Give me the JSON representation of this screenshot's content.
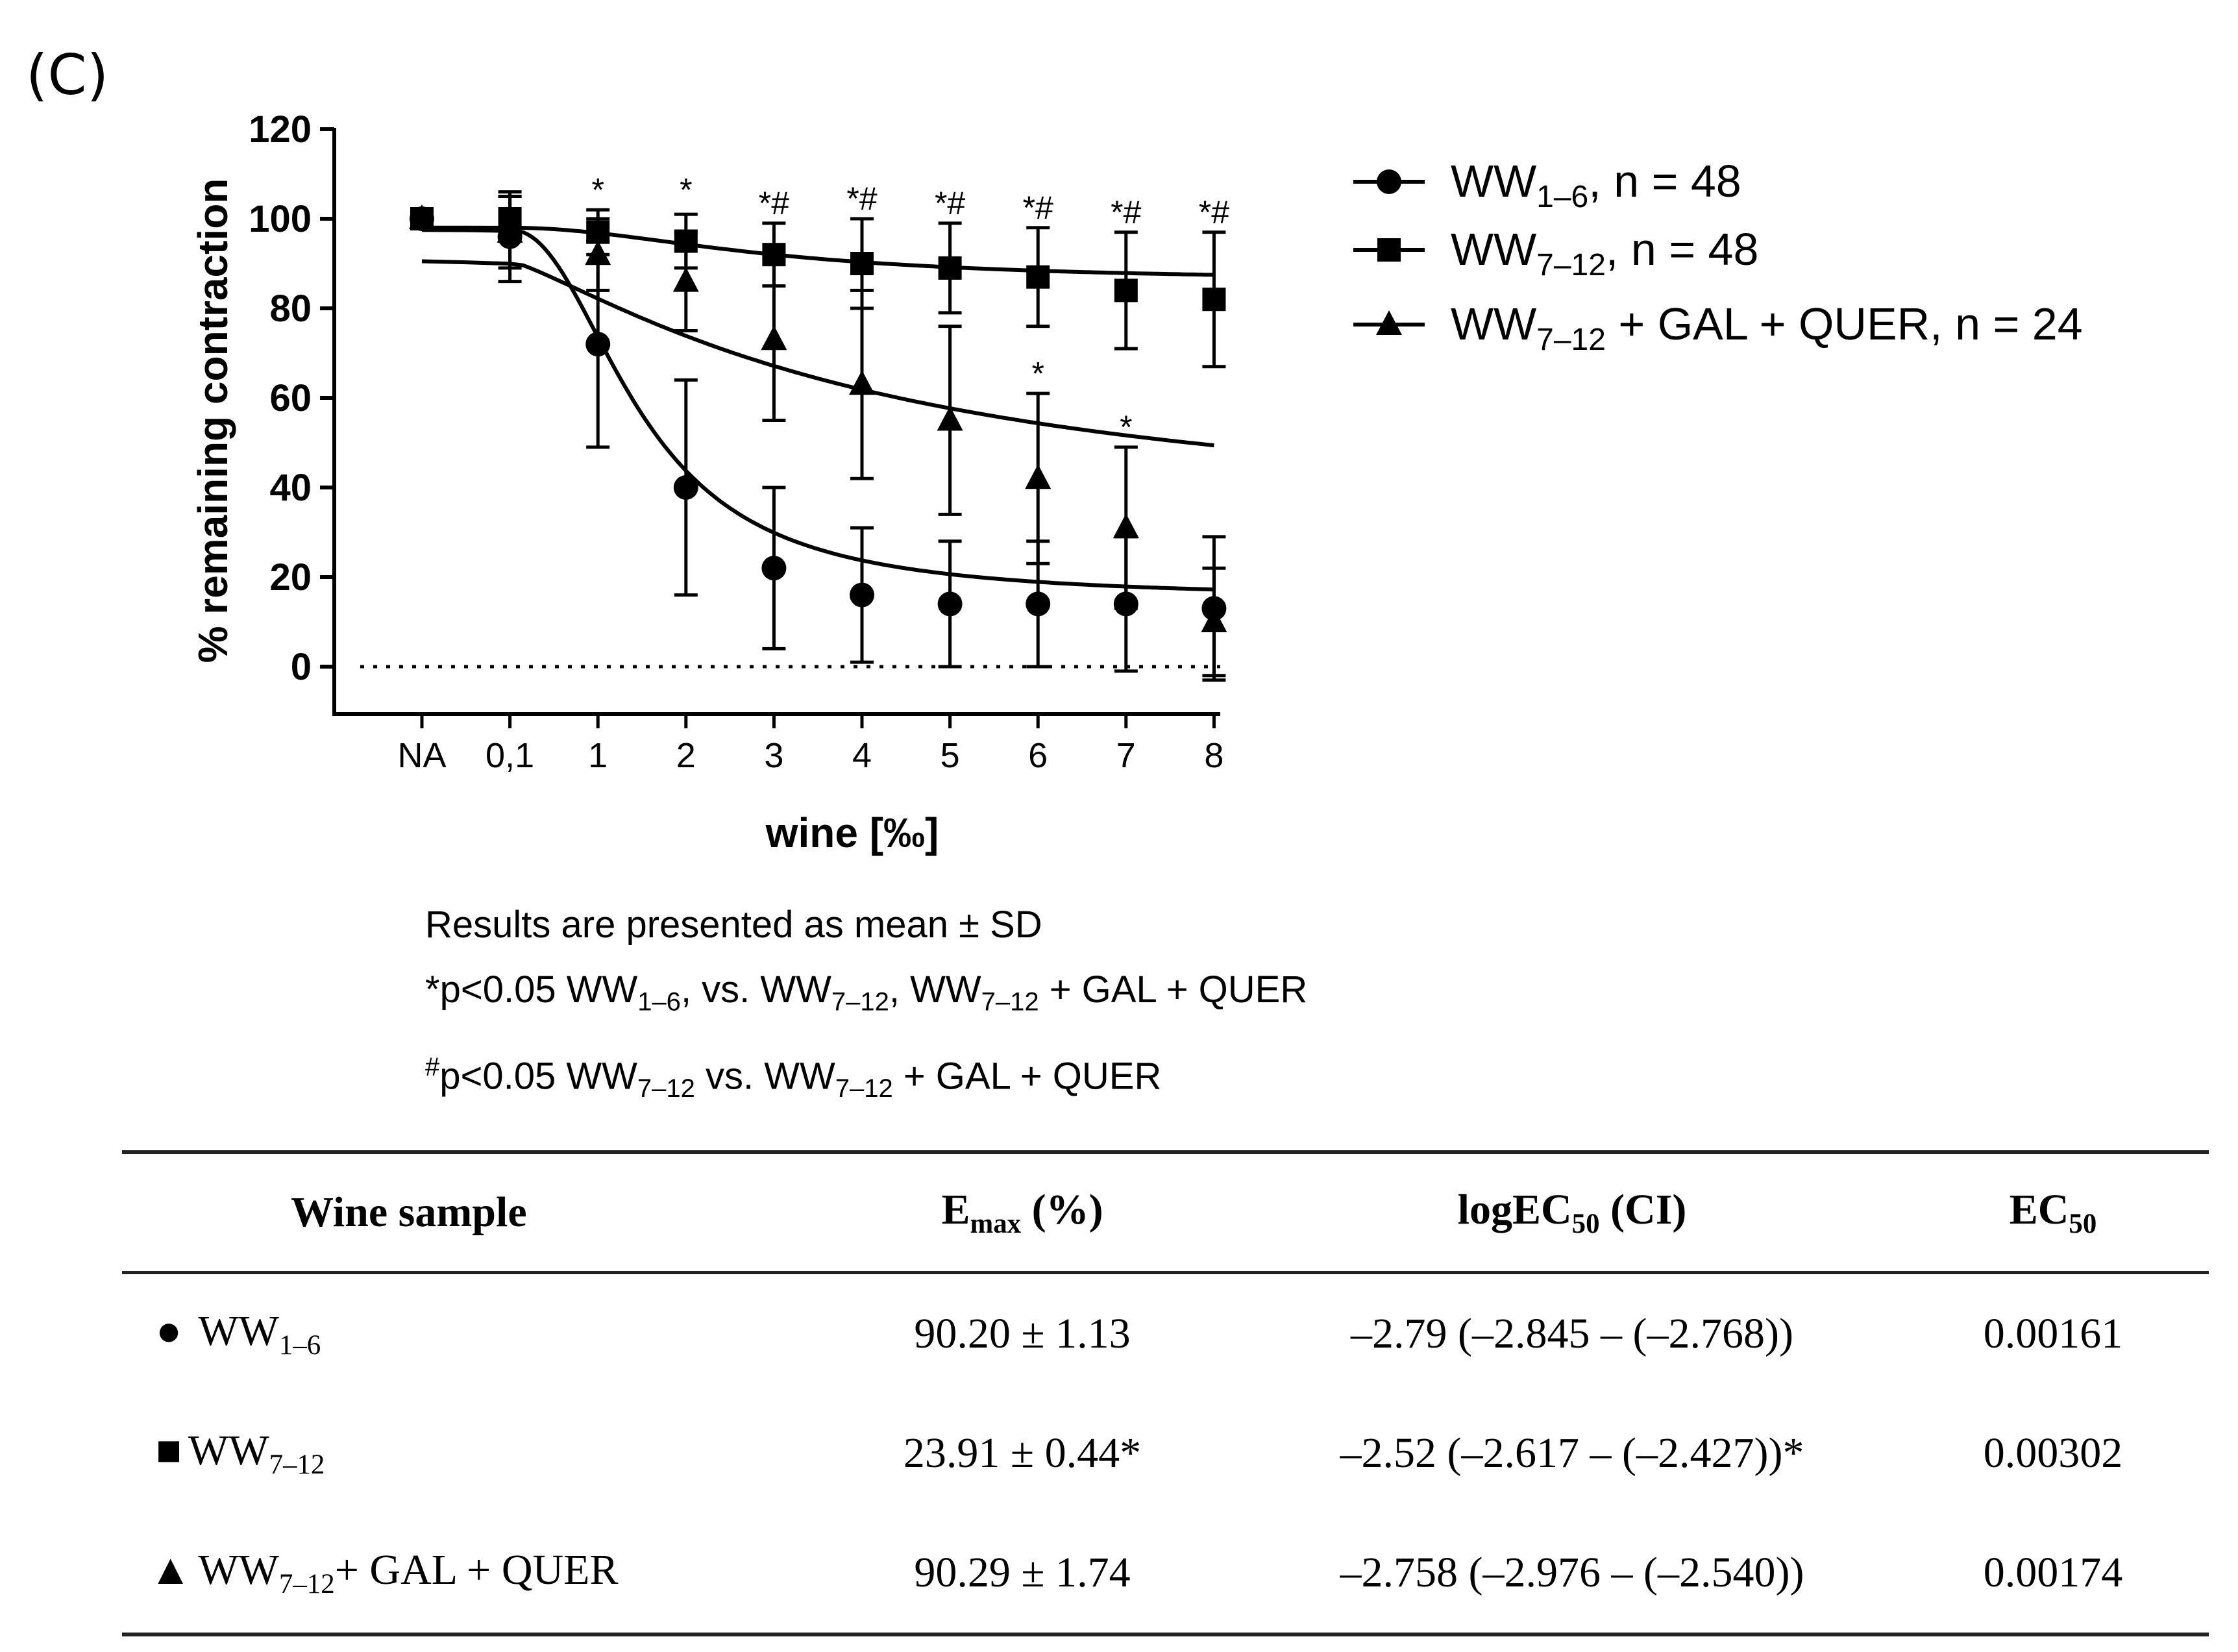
{
  "panel_label": "(C)",
  "chart_data": {
    "type": "line",
    "ylabel": "% remaining contraction",
    "xlabel": "wine [‰]",
    "ylim": [
      -10,
      120
    ],
    "yticks": [
      0,
      20,
      40,
      60,
      80,
      100,
      120
    ],
    "ytick_labels": [
      "0",
      "20",
      "40",
      "60",
      "80",
      "100",
      "120"
    ],
    "categories": [
      "NA",
      "0,1",
      "1",
      "2",
      "3",
      "4",
      "5",
      "6",
      "7",
      "8"
    ],
    "baseline": 0,
    "series": [
      {
        "name": "WW1–6",
        "legend_base": "WW",
        "legend_sub": "1–6",
        "legend_n": "n = 48",
        "marker": "circle",
        "values": [
          100,
          96,
          72,
          40,
          22,
          16,
          14,
          14,
          14,
          13
        ],
        "errors": [
          0,
          10,
          23,
          24,
          18,
          15,
          14,
          14,
          15,
          16
        ],
        "fit": {
          "top": 97.5,
          "bottom": 15.2,
          "mid": 1.5,
          "steep": 2.2
        }
      },
      {
        "name": "WW7–12",
        "legend_base": "WW",
        "legend_sub": "7–12",
        "legend_n": "n = 48",
        "marker": "square",
        "values": [
          100,
          100,
          97,
          95,
          92,
          90,
          89,
          87,
          84,
          82
        ],
        "errors": [
          0,
          5,
          5,
          6,
          7,
          10,
          10,
          11,
          13,
          15
        ],
        "fit": {
          "top": 98,
          "bottom": 86,
          "mid": 3,
          "steep": 2
        }
      },
      {
        "name": "WW7–12 + GAL + QUER",
        "legend_base": "WW",
        "legend_sub": "7–12",
        "legend_suffix": " + GAL + QUER, ",
        "legend_n": "n = 24",
        "marker": "triangle",
        "values": [
          100,
          97,
          92,
          86,
          73,
          63,
          55,
          42,
          31,
          10
        ],
        "errors": [
          0,
          8,
          8,
          11,
          18,
          21,
          21,
          19,
          18,
          12
        ],
        "fit": {
          "top": 90.5,
          "bottom": 30.5,
          "mid": 4.3,
          "steep": 1.25
        }
      }
    ],
    "annotations": [
      {
        "category": "1",
        "text": "*",
        "value": 104
      },
      {
        "category": "2",
        "text": "*",
        "value": 104
      },
      {
        "category": "3",
        "text": "*#",
        "value": 101
      },
      {
        "category": "4",
        "text": "*#",
        "value": 102
      },
      {
        "category": "5",
        "text": "*#",
        "value": 101
      },
      {
        "category": "6",
        "text": "*#",
        "value": 100
      },
      {
        "category": "7",
        "text": "*#",
        "value": 99
      },
      {
        "category": "8",
        "text": "*#",
        "value": 99
      },
      {
        "category": "6",
        "text": "*",
        "value": 63
      },
      {
        "category": "7",
        "text": "*",
        "value": 51
      }
    ]
  },
  "notes": {
    "line1": "Results are presented as mean ± SD",
    "line2_a": "*p<0.05 WW",
    "line2_sub1": "1–6",
    "line2_b": ", vs. WW",
    "line2_sub2": "7–12",
    "line2_c": ", WW",
    "line2_sub3": "7–12",
    "line2_d": " + GAL + QUER",
    "line3_sup": "#",
    "line3_a": "p<0.05 WW",
    "line3_sub1": "7–12",
    "line3_b": " vs. WW",
    "line3_sub2": "7–12",
    "line3_c": " + GAL + QUER"
  },
  "table": {
    "header": {
      "col1": "Wine sample",
      "col2_base": "E",
      "col2_sub": "max",
      "col2_rest": " (%)",
      "col3_base": "logEC",
      "col3_sub": "50",
      "col3_rest": " (CI)",
      "col4_base": "EC",
      "col4_sub": "50"
    },
    "rows": [
      {
        "symbol": "●",
        "sample_base": "WW",
        "sample_sub": "1–6",
        "sample_rest": "",
        "emax": "90.20 ± 1.13",
        "logec50": "–2.79 (–2.845 – (–2.768))",
        "ec50": "0.00161"
      },
      {
        "symbol": "■",
        "sample_base": "WW",
        "sample_sub": "7–12",
        "sample_rest": "",
        "emax": "23.91 ± 0.44*",
        "logec50": "–2.52 (–2.617 – (–2.427))*",
        "ec50": "0.00302"
      },
      {
        "symbol": "▲",
        "sample_base": "WW",
        "sample_sub": "7–12",
        "sample_rest": "+ GAL + QUER",
        "emax": "90.29 ± 1.74",
        "logec50": "–2.758 (–2.976 – (–2.540))",
        "ec50": "0.00174"
      }
    ]
  }
}
